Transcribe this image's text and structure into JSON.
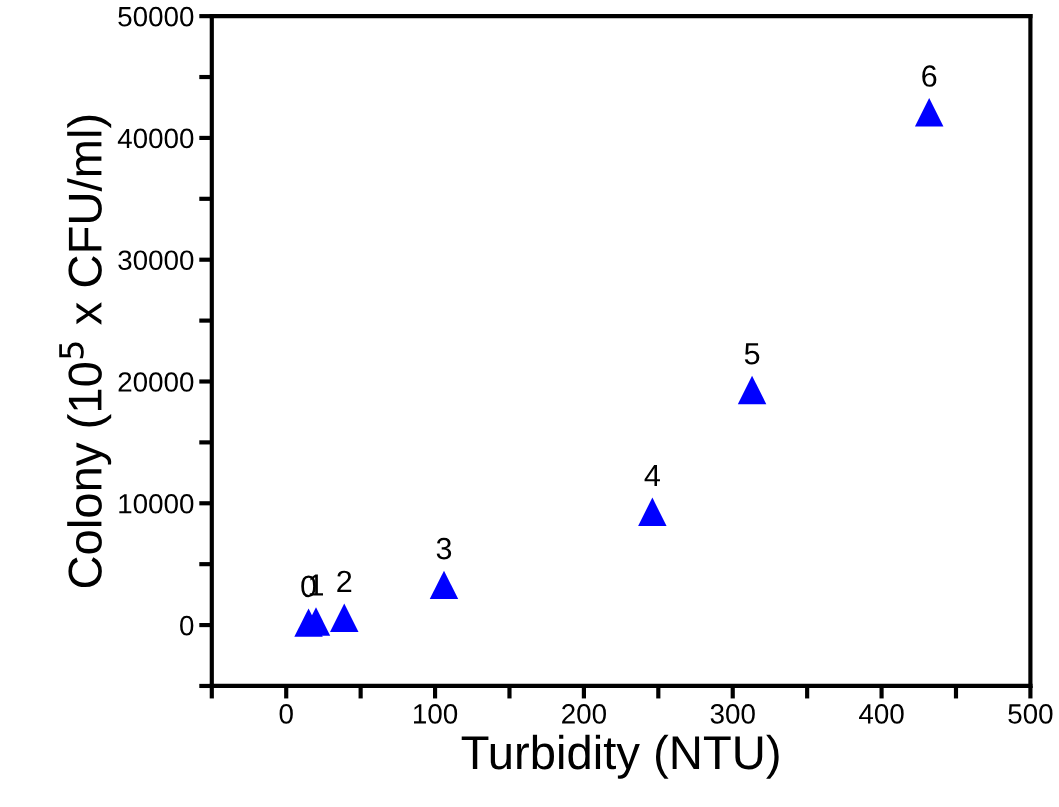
{
  "chart_data": {
    "type": "scatter",
    "xlabel": "Turbidity (NTU)",
    "ylabel": "Colony (10$^{5}$ x CFU/ml)",
    "x": [
      15,
      20,
      39,
      106,
      246,
      313,
      432
    ],
    "series": [
      {
        "color": "#0000ff",
        "values": [
          200,
          300,
          600,
          3300,
          9300,
          19300,
          42100
        ]
      }
    ],
    "marker": "triangle",
    "grid": false,
    "legend": false,
    "annotations": [
      {
        "text": "0",
        "x": 15,
        "y": 200
      },
      {
        "text": "1",
        "x": 20,
        "y": 300
      },
      {
        "text": "2",
        "x": 39,
        "y": 600
      },
      {
        "text": "3",
        "x": 106,
        "y": 3300
      },
      {
        "text": "4",
        "x": 246,
        "y": 9300
      },
      {
        "text": "5",
        "x": 313,
        "y": 19300
      },
      {
        "text": "6",
        "x": 432,
        "y": 42100
      }
    ],
    "xlim": [
      -50,
      500
    ],
    "ylim": [
      -5000,
      50000
    ],
    "xticks": [
      {
        "value": -50,
        "label": null
      },
      0,
      {
        "value": 50,
        "label": null
      },
      100,
      {
        "value": 150,
        "label": null
      },
      200,
      {
        "value": 250,
        "label": null
      },
      300,
      {
        "value": 350,
        "label": null
      },
      400,
      {
        "value": 450,
        "label": null
      },
      500
    ],
    "yticks": [
      {
        "value": -5000,
        "label": null
      },
      0,
      {
        "value": 5000,
        "label": null
      },
      10000,
      {
        "value": 15000,
        "label": null
      },
      20000,
      {
        "value": 25000,
        "label": null
      },
      30000,
      {
        "value": 35000,
        "label": null
      },
      40000,
      {
        "value": 45000,
        "label": null
      },
      50000
    ]
  }
}
